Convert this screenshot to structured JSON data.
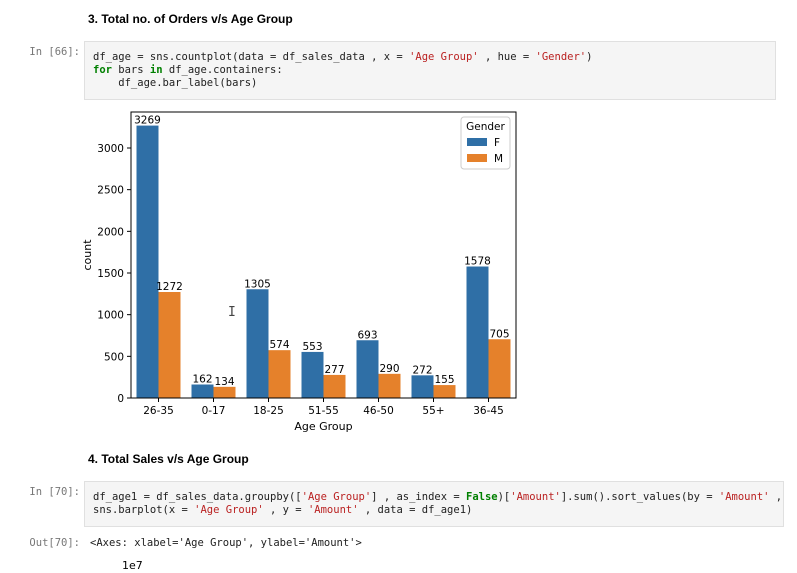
{
  "cells": {
    "heading1": "3. Total no. of Orders v/s Age Group",
    "prompt66": "In [66]:",
    "code66": {
      "l1a": "df_age = sns.countplot(data = df_sales_data , x = ",
      "l1s1": "'Age Group'",
      "l1b": " , hue = ",
      "l1s2": "'Gender'",
      "l1c": ")",
      "l2kw1": "for",
      "l2a": " bars ",
      "l2kw2": "in",
      "l2b": " df_age.containers:",
      "l3": "    df_age.bar_label(bars)"
    },
    "heading2": "4. Total Sales v/s Age Group",
    "prompt70": "In [70]:",
    "code70": {
      "l1a": "df_age1 = df_sales_data.groupby([",
      "l1s1": "'Age Group'",
      "l1b": "] , as_index = ",
      "l1kw": "False",
      "l1c": ")[",
      "l1s2": "'Amount'",
      "l1d": "].sum().sort_values(by = ",
      "l1s3": "'Amount'",
      "l1e": " , asc",
      "l2a": "sns.barplot(x = ",
      "l2s1": "'Age Group'",
      "l2b": " , y = ",
      "l2s2": "'Amount'",
      "l2c": " , data = df_age1)"
    },
    "out_prompt70": "Out[70]:",
    "out70": "<Axes: xlabel='Age Group', ylabel='Amount'>",
    "next_plot_scale": "1e7"
  },
  "cursor_glyph": "I",
  "chart_data": {
    "type": "bar",
    "categories": [
      "26-35",
      "0-17",
      "18-25",
      "51-55",
      "46-50",
      "55+",
      "36-45"
    ],
    "series": [
      {
        "name": "F",
        "values": [
          3269,
          162,
          1305,
          553,
          693,
          272,
          1578
        ],
        "color": "#2f6fa6"
      },
      {
        "name": "M",
        "values": [
          1272,
          134,
          574,
          277,
          290,
          155,
          705
        ],
        "color": "#e5812b"
      }
    ],
    "title": "",
    "xlabel": "Age Group",
    "ylabel": "count",
    "ylim": [
      0,
      3432
    ],
    "yticks": [
      0,
      500,
      1000,
      1500,
      2000,
      2500,
      3000
    ],
    "legend_title": "Gender",
    "legend_position": "top-right",
    "grid": false
  }
}
